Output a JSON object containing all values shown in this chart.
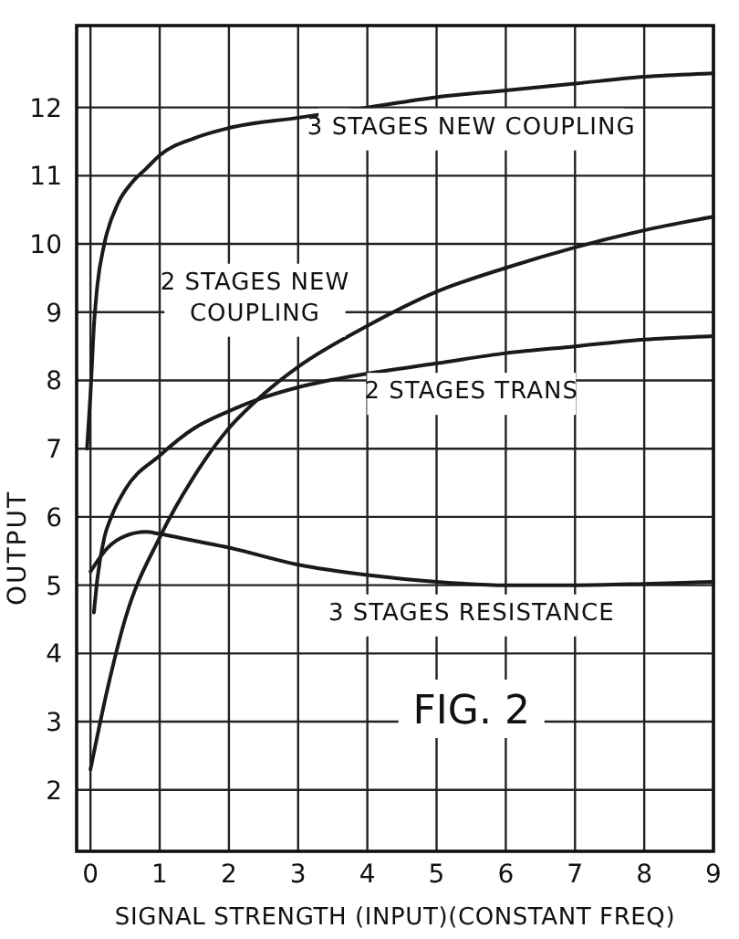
{
  "chart_data": {
    "type": "line",
    "xlabel": "SIGNAL STRENGTH (INPUT)(CONSTANT FREQ)",
    "ylabel": "OUTPUT",
    "annotations": [
      "FIG. 2"
    ],
    "xlim": [
      -0.2,
      9
    ],
    "ylim": [
      1.1,
      13.2
    ],
    "xticks": [
      0,
      1,
      2,
      3,
      4,
      5,
      6,
      7,
      8,
      9
    ],
    "yticks": [
      2,
      3,
      4,
      5,
      6,
      7,
      8,
      9,
      10,
      11,
      12
    ],
    "grid": true,
    "marker": "none",
    "line_style": "solid",
    "series": [
      {
        "name": "3 STAGES NEW COUPLING",
        "color": "#1a1a1a",
        "x": [
          -0.05,
          0,
          0.05,
          0.1,
          0.2,
          0.4,
          0.6,
          0.8,
          1,
          1.5,
          2,
          3,
          4,
          5,
          6,
          7,
          8,
          9
        ],
        "values": [
          7.0,
          7.8,
          8.8,
          9.4,
          10.0,
          10.6,
          10.9,
          11.1,
          11.3,
          11.55,
          11.7,
          11.85,
          12.0,
          12.15,
          12.25,
          12.35,
          12.45,
          12.5
        ]
      },
      {
        "name": "2 STAGES NEW COUPLING",
        "color": "#1a1a1a",
        "x": [
          0,
          0.25,
          0.5,
          1,
          1.5,
          2,
          2.5,
          3,
          4,
          5,
          6,
          7,
          8,
          9
        ],
        "values": [
          2.3,
          3.5,
          4.5,
          5.7,
          6.6,
          7.3,
          7.8,
          8.2,
          8.8,
          9.3,
          9.65,
          9.95,
          10.2,
          10.4
        ]
      },
      {
        "name": "2 STAGES TRANS",
        "color": "#1a1a1a",
        "x": [
          0.05,
          0.1,
          0.2,
          0.3,
          0.5,
          1,
          1.5,
          2,
          2.5,
          3,
          4,
          5,
          6,
          7,
          8,
          9
        ],
        "values": [
          4.6,
          5.1,
          5.7,
          6.0,
          6.4,
          6.9,
          7.3,
          7.55,
          7.75,
          7.9,
          8.1,
          8.25,
          8.4,
          8.5,
          8.6,
          8.65
        ]
      },
      {
        "name": "3 STAGES RESISTANCE",
        "color": "#1a1a1a",
        "x": [
          0,
          0.25,
          0.5,
          0.8,
          1,
          1.5,
          2,
          3,
          4,
          5,
          6,
          7,
          8,
          9
        ],
        "values": [
          5.2,
          5.55,
          5.72,
          5.78,
          5.75,
          5.65,
          5.55,
          5.3,
          5.15,
          5.05,
          5.0,
          5.0,
          5.02,
          5.05
        ]
      }
    ]
  }
}
